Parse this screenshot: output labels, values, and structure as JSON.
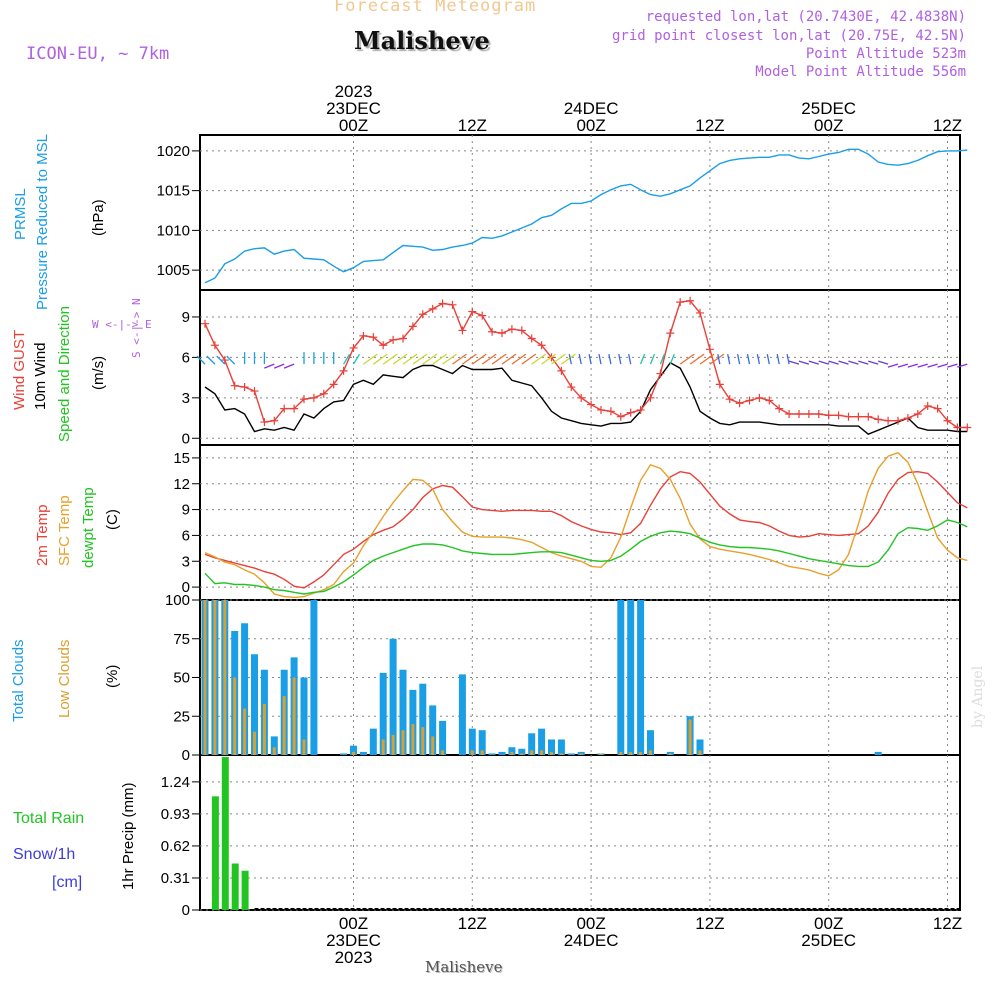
{
  "header": {
    "super_title": "Forecast Meteogram",
    "location": "Malisheve",
    "model": "ICON-EU, ~ 7km",
    "requested": "requested lon,lat (20.7430E, 42.4838N)",
    "grid_point": "grid point closest lon,lat (20.75E, 42.5N)",
    "point_alt": "Point Altitude 523m",
    "model_alt": "Model Point Altitude 556m",
    "credit": "by Angel",
    "footer": "Malisheve"
  },
  "colors": {
    "pressure": "#1a9ee6",
    "gust": "#e8403a",
    "wind": "#000000",
    "t2m": "#e8403a",
    "sfc": "#e8a02a",
    "dew": "#22c422",
    "total_cloud": "#1a9ee6",
    "low_cloud": "#d8a030",
    "rain": "#22c422",
    "snow": "#3d3dd8",
    "purple": "#b060e0",
    "super_title": "#f0c890"
  },
  "top_axis": [
    {
      "hour": 15,
      "lines": [
        "2023",
        "23DEC",
        "00Z"
      ]
    },
    {
      "hour": 27,
      "lines": [
        "12Z"
      ]
    },
    {
      "hour": 39,
      "lines": [
        "24DEC",
        "00Z"
      ]
    },
    {
      "hour": 51,
      "lines": [
        "12Z"
      ]
    },
    {
      "hour": 63,
      "lines": [
        "25DEC",
        "00Z"
      ]
    },
    {
      "hour": 75,
      "lines": [
        "12Z"
      ]
    }
  ],
  "bottom_axis": [
    {
      "hour": 15,
      "lines": [
        "00Z",
        "23DEC",
        "2023"
      ]
    },
    {
      "hour": 27,
      "lines": [
        "12Z"
      ]
    },
    {
      "hour": 39,
      "lines": [
        "00Z",
        "24DEC"
      ]
    },
    {
      "hour": 51,
      "lines": [
        "12Z"
      ]
    },
    {
      "hour": 63,
      "lines": [
        "00Z",
        "25DEC"
      ]
    },
    {
      "hour": 75,
      "lines": [
        "12Z"
      ]
    }
  ],
  "panel_labels": {
    "pressure": [
      "PRMSL",
      "Pressure Reduced to MSL",
      "(hPa)"
    ],
    "wind": [
      "Wind GUST",
      "10m Wind",
      "Speed and Direction",
      "(m/s)"
    ],
    "compass": [
      "W <-|-> E",
      "S <-|-> N"
    ],
    "temp": [
      "2m Temp",
      "SFC Temp",
      "dewpt Temp",
      "(C)"
    ],
    "cloud": [
      "Total Clouds",
      "Low Clouds",
      "(%)"
    ],
    "precip": [
      "Total  Rain",
      "Snow/1h",
      "[cm]",
      "1hr Precip (mm)"
    ]
  },
  "chart_data": [
    {
      "type": "line",
      "title": "PRMSL Pressure Reduced to MSL",
      "ylabel": "(hPa)",
      "ylim": [
        1002.5,
        1022
      ],
      "yticks": [
        1005,
        1010,
        1015,
        1020
      ],
      "x_hours": [
        0,
        1,
        2,
        3,
        4,
        5,
        6,
        7,
        8,
        9,
        10,
        11,
        12,
        13,
        14,
        15,
        16,
        17,
        18,
        19,
        20,
        21,
        22,
        23,
        24,
        25,
        26,
        27,
        28,
        29,
        30,
        31,
        32,
        33,
        34,
        35,
        36,
        37,
        38,
        39,
        40,
        41,
        42,
        43,
        44,
        45,
        46,
        47,
        48,
        49,
        50,
        51,
        52,
        53,
        54,
        55,
        56,
        57,
        58,
        59,
        60,
        61,
        62,
        63,
        64,
        65,
        66,
        67,
        68,
        69,
        70,
        71,
        72,
        73,
        74,
        75,
        76,
        77
      ],
      "values": [
        1003.4,
        1004.0,
        1005.8,
        1006.4,
        1007.4,
        1007.7,
        1007.8,
        1007.0,
        1007.4,
        1007.6,
        1006.5,
        1006.4,
        1006.3,
        1005.5,
        1004.8,
        1005.3,
        1006.1,
        1006.2,
        1006.3,
        1007.2,
        1008.1,
        1008.0,
        1007.9,
        1007.5,
        1007.6,
        1007.9,
        1008.1,
        1008.4,
        1009.1,
        1009.0,
        1009.3,
        1009.8,
        1010.3,
        1010.8,
        1011.6,
        1011.9,
        1012.7,
        1013.4,
        1013.4,
        1013.7,
        1014.5,
        1015.1,
        1015.6,
        1015.8,
        1015.1,
        1014.5,
        1014.3,
        1014.6,
        1015.1,
        1015.6,
        1016.6,
        1017.5,
        1018.4,
        1018.8,
        1019.0,
        1019.1,
        1019.2,
        1019.2,
        1019.5,
        1019.5,
        1019.1,
        1019.0,
        1019.3,
        1019.6,
        1019.8,
        1020.2,
        1020.2,
        1019.6,
        1018.6,
        1018.3,
        1018.2,
        1018.4,
        1018.8,
        1019.4,
        1019.9,
        1020.0,
        1020.0,
        1020.1
      ]
    },
    {
      "type": "line",
      "title": "Wind GUST / 10m Wind Speed and Direction",
      "ylabel": "(m/s)",
      "ylim": [
        -0.5,
        11
      ],
      "yticks": [
        0,
        3,
        6,
        9
      ],
      "x_hours": [
        0,
        1,
        2,
        3,
        4,
        5,
        6,
        7,
        8,
        9,
        10,
        11,
        12,
        13,
        14,
        15,
        16,
        17,
        18,
        19,
        20,
        21,
        22,
        23,
        24,
        25,
        26,
        27,
        28,
        29,
        30,
        31,
        32,
        33,
        34,
        35,
        36,
        37,
        38,
        39,
        40,
        41,
        42,
        43,
        44,
        45,
        46,
        47,
        48,
        49,
        50,
        51,
        52,
        53,
        54,
        55,
        56,
        57,
        58,
        59,
        60,
        61,
        62,
        63,
        64,
        65,
        66,
        67,
        68,
        69,
        70,
        71,
        72,
        73,
        74,
        75,
        76,
        77
      ],
      "series": [
        {
          "name": "Wind GUST",
          "values": [
            8.5,
            6.9,
            5.8,
            3.9,
            3.8,
            3.5,
            1.2,
            1.3,
            2.2,
            2.2,
            2.9,
            3.0,
            3.3,
            4.0,
            5.0,
            6.7,
            7.6,
            7.5,
            6.9,
            7.3,
            7.4,
            8.3,
            9.2,
            9.6,
            10.0,
            9.9,
            8.0,
            9.4,
            9.1,
            7.9,
            7.8,
            8.1,
            8.0,
            7.4,
            6.9,
            6.0,
            5.0,
            3.8,
            3.0,
            2.5,
            2.1,
            2.0,
            1.6,
            1.9,
            2.1,
            3.0,
            4.8,
            7.8,
            10.1,
            10.2,
            9.3,
            6.6,
            4.0,
            2.9,
            2.6,
            2.8,
            3.0,
            2.8,
            2.2,
            1.8,
            1.8,
            1.8,
            1.8,
            1.7,
            1.7,
            1.6,
            1.6,
            1.6,
            1.4,
            1.3,
            1.3,
            1.5,
            1.8,
            2.4,
            2.2,
            1.3,
            0.8,
            0.8
          ]
        },
        {
          "name": "10m Wind",
          "values": [
            3.8,
            3.3,
            2.1,
            2.2,
            1.8,
            0.5,
            0.7,
            0.6,
            0.8,
            0.6,
            1.8,
            1.5,
            2.2,
            2.7,
            2.8,
            4.0,
            4.3,
            4.0,
            4.7,
            4.6,
            4.5,
            5.1,
            5.4,
            5.4,
            5.1,
            4.8,
            5.4,
            5.1,
            5.1,
            5.1,
            5.2,
            4.3,
            4.1,
            3.9,
            3.0,
            2.0,
            1.5,
            1.3,
            1.1,
            1.0,
            0.9,
            1.1,
            1.1,
            1.2,
            2.0,
            3.6,
            4.6,
            5.6,
            5.2,
            3.8,
            2.0,
            1.5,
            1.1,
            1.0,
            1.2,
            1.2,
            1.2,
            1.1,
            1.0,
            1.0,
            1.0,
            1.0,
            1.0,
            1.0,
            0.9,
            0.9,
            0.9,
            0.3,
            0.6,
            0.9,
            1.2,
            1.5,
            0.8,
            0.6,
            0.6,
            0.6,
            0.5,
            0.5
          ]
        }
      ]
    },
    {
      "type": "line",
      "title": "2m Temp / SFC Temp / dewpt Temp",
      "ylabel": "(C)",
      "ylim": [
        -1.5,
        16.5
      ],
      "yticks": [
        0,
        3,
        6,
        9,
        12,
        15
      ],
      "x_hours": [
        0,
        1,
        2,
        3,
        4,
        5,
        6,
        7,
        8,
        9,
        10,
        11,
        12,
        13,
        14,
        15,
        16,
        17,
        18,
        19,
        20,
        21,
        22,
        23,
        24,
        25,
        26,
        27,
        28,
        29,
        30,
        31,
        32,
        33,
        34,
        35,
        36,
        37,
        38,
        39,
        40,
        41,
        42,
        43,
        44,
        45,
        46,
        47,
        48,
        49,
        50,
        51,
        52,
        53,
        54,
        55,
        56,
        57,
        58,
        59,
        60,
        61,
        62,
        63,
        64,
        65,
        66,
        67,
        68,
        69,
        70,
        71,
        72,
        73,
        74,
        75,
        76,
        77
      ],
      "series": [
        {
          "name": "2m Temp",
          "values": [
            3.8,
            3.4,
            3.1,
            2.8,
            2.5,
            2.2,
            1.8,
            1.5,
            0.9,
            0.1,
            -0.1,
            0.6,
            1.4,
            2.6,
            3.8,
            4.4,
            5.3,
            6.1,
            6.6,
            7.0,
            7.9,
            9.0,
            10.4,
            11.4,
            11.8,
            11.6,
            10.5,
            9.3,
            9.0,
            8.9,
            8.8,
            8.9,
            8.9,
            8.9,
            8.8,
            8.8,
            8.3,
            7.6,
            7.1,
            6.7,
            6.4,
            6.3,
            6.1,
            6.3,
            7.4,
            9.5,
            11.4,
            12.8,
            13.4,
            13.2,
            12.2,
            10.8,
            9.4,
            8.5,
            7.8,
            7.6,
            7.5,
            7.1,
            6.5,
            6.0,
            5.8,
            5.9,
            6.2,
            6.1,
            6.0,
            6.1,
            6.2,
            7.1,
            8.7,
            10.9,
            12.5,
            13.3,
            13.4,
            13.2,
            12.2,
            11.0,
            9.8,
            9.2
          ]
        },
        {
          "name": "SFC Temp",
          "values": [
            4.0,
            3.5,
            2.9,
            2.6,
            2.0,
            1.5,
            0.5,
            -0.8,
            -1.1,
            -1.2,
            -1.1,
            -0.7,
            -0.3,
            0.3,
            1.8,
            2.8,
            4.8,
            6.4,
            8.2,
            9.8,
            11.2,
            12.5,
            12.4,
            11.4,
            9.0,
            7.6,
            6.4,
            5.9,
            5.8,
            5.8,
            5.8,
            5.7,
            5.5,
            5.2,
            4.6,
            4.0,
            3.6,
            3.3,
            3.0,
            2.4,
            2.3,
            3.4,
            5.8,
            9.2,
            12.4,
            14.2,
            13.8,
            12.5,
            10.3,
            7.3,
            5.6,
            4.7,
            4.4,
            4.2,
            4.0,
            3.8,
            3.5,
            3.2,
            2.8,
            2.4,
            2.2,
            2.0,
            1.6,
            1.3,
            2.0,
            3.8,
            7.3,
            11.2,
            13.8,
            15.2,
            15.6,
            14.5,
            12.0,
            8.8,
            5.7,
            4.3,
            3.4,
            3.1
          ]
        },
        {
          "name": "dewpt Temp",
          "values": [
            1.6,
            0.4,
            0.5,
            0.3,
            0.3,
            0.2,
            0.0,
            -0.3,
            -0.4,
            -0.6,
            -0.8,
            -0.6,
            -0.5,
            0.0,
            0.6,
            1.4,
            2.3,
            3.1,
            3.6,
            4.0,
            4.4,
            4.8,
            5.0,
            5.0,
            4.9,
            4.6,
            4.2,
            4.0,
            3.9,
            3.8,
            3.8,
            3.8,
            3.9,
            4.0,
            4.1,
            4.1,
            4.0,
            3.7,
            3.4,
            3.1,
            3.0,
            3.1,
            3.6,
            4.4,
            5.3,
            5.9,
            6.3,
            6.5,
            6.4,
            6.2,
            5.7,
            5.2,
            4.9,
            4.7,
            4.6,
            4.6,
            4.5,
            4.4,
            4.2,
            3.9,
            3.6,
            3.3,
            3.1,
            2.9,
            2.7,
            2.5,
            2.4,
            2.4,
            2.9,
            4.3,
            6.2,
            6.9,
            6.8,
            6.6,
            7.1,
            7.8,
            7.5,
            7.0
          ]
        }
      ]
    },
    {
      "type": "bar",
      "title": "Total Clouds / Low Clouds",
      "ylabel": "(%)",
      "ylim": [
        0,
        100
      ],
      "yticks": [
        0,
        25,
        50,
        75,
        100
      ],
      "x_hours": [
        0,
        1,
        2,
        3,
        4,
        5,
        6,
        7,
        8,
        9,
        10,
        11,
        12,
        13,
        14,
        15,
        16,
        17,
        18,
        19,
        20,
        21,
        22,
        23,
        24,
        25,
        26,
        27,
        28,
        29,
        30,
        31,
        32,
        33,
        34,
        35,
        36,
        37,
        38,
        39,
        40,
        41,
        42,
        43,
        44,
        45,
        46,
        47,
        48,
        49,
        50,
        51,
        52,
        53,
        54,
        55,
        56,
        57,
        58,
        59,
        60,
        61,
        62,
        63,
        64,
        65,
        66,
        67,
        68,
        69,
        70,
        71,
        72,
        73,
        74,
        75,
        76,
        77
      ],
      "series": [
        {
          "name": "Total Clouds",
          "values": [
            100,
            100,
            100,
            80,
            85,
            65,
            55,
            12,
            55,
            63,
            50,
            100,
            0,
            0,
            1,
            6,
            2,
            17,
            53,
            75,
            55,
            42,
            46,
            32,
            22,
            0,
            52,
            17,
            16,
            1,
            2,
            5,
            4,
            14,
            17,
            10,
            10,
            1,
            2,
            0,
            1,
            0,
            100,
            100,
            100,
            16,
            0,
            2,
            0,
            25,
            10,
            0,
            0,
            0,
            0,
            0,
            0,
            0,
            0,
            0,
            0,
            0,
            0,
            0,
            0,
            0,
            0,
            0,
            2,
            0,
            0,
            0,
            0,
            0,
            0,
            0,
            0,
            0
          ]
        },
        {
          "name": "Low Clouds",
          "values": [
            100,
            100,
            100,
            50,
            30,
            15,
            33,
            5,
            38,
            50,
            10,
            0,
            0,
            0,
            0,
            2,
            0,
            0,
            10,
            13,
            16,
            20,
            18,
            12,
            3,
            0,
            0,
            3,
            3,
            0,
            0,
            2,
            1,
            3,
            3,
            2,
            1,
            0,
            1,
            0,
            1,
            0,
            2,
            2,
            2,
            3,
            0,
            1,
            0,
            23,
            3,
            0,
            0,
            0,
            0,
            0,
            0,
            0,
            0,
            0,
            0,
            0,
            0,
            0,
            0,
            0,
            0,
            0,
            0,
            0,
            0,
            0,
            0,
            0,
            0,
            0,
            0,
            0
          ]
        }
      ]
    },
    {
      "type": "bar",
      "title": "Total Rain / Snow/1h",
      "ylabel": "1hr Precip (mm)",
      "ylim": [
        0,
        1.5
      ],
      "yticks": [
        0,
        0.31,
        0.62,
        0.93,
        1.24
      ],
      "x_hours": [
        0,
        1,
        2,
        3,
        4
      ],
      "series": [
        {
          "name": "Total Rain",
          "values": [
            0,
            1.1,
            1.48,
            0.45,
            0.38
          ]
        },
        {
          "name": "Snow/1h",
          "values": [
            0,
            0,
            0,
            0,
            0
          ]
        }
      ]
    }
  ]
}
